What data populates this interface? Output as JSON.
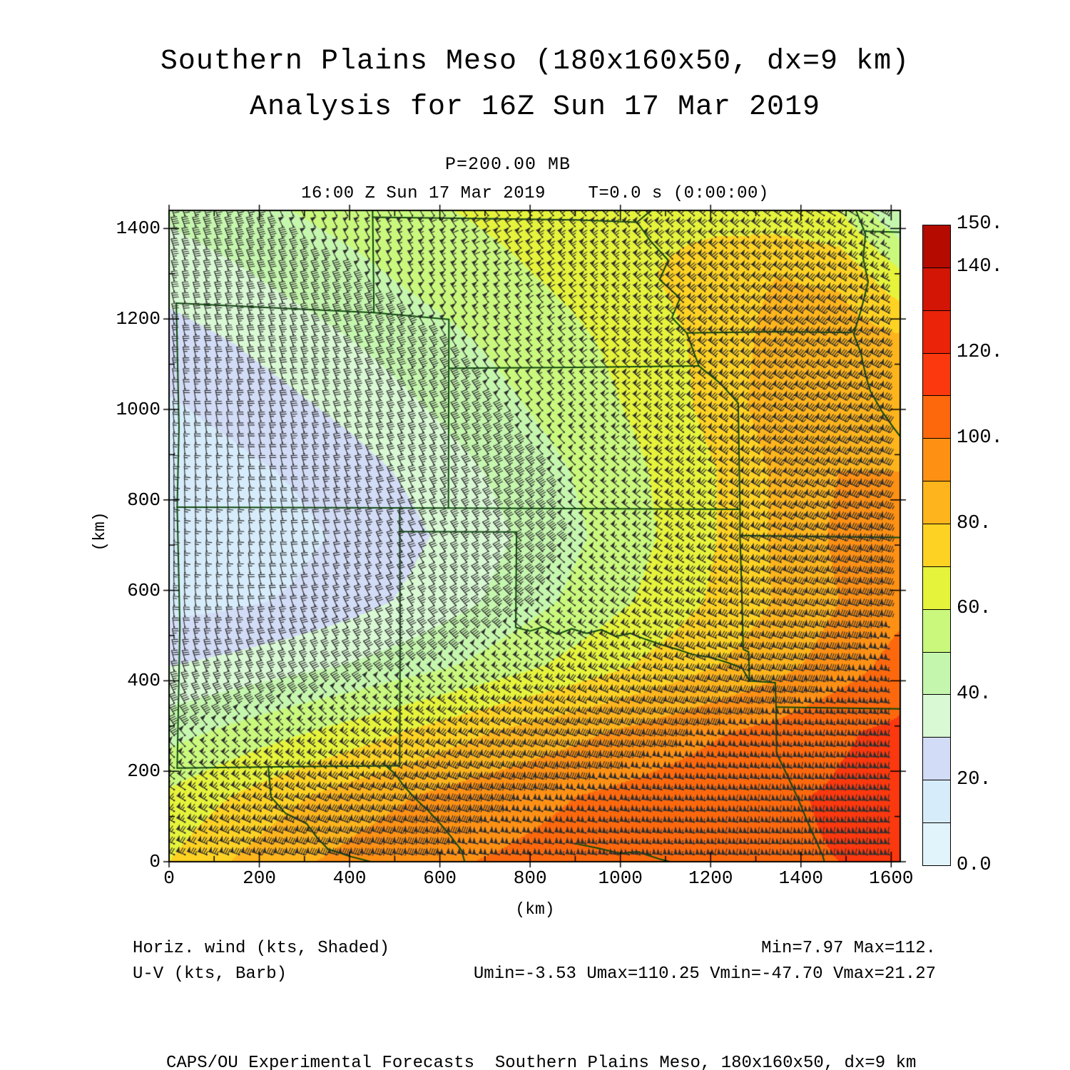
{
  "header": {
    "title_line1": "Southern Plains Meso (180x160x50, dx=9 km)",
    "title_line2": "Analysis for 16Z Sun 17 Mar 2019",
    "pressure_line": "P=200.00 MB",
    "time_line": "16:00 Z Sun 17 Mar 2019    T=0.0 s (0:00:00)"
  },
  "axes": {
    "x_label": "(km)",
    "y_label": "(km)",
    "x_ticks": [
      0,
      200,
      400,
      600,
      800,
      1000,
      1200,
      1400,
      1600
    ],
    "y_ticks": [
      0,
      200,
      400,
      600,
      800,
      1000,
      1200,
      1400
    ],
    "minor_step_km": 100,
    "x_range_km": [
      0,
      1620
    ],
    "y_range_km": [
      0,
      1440
    ]
  },
  "colorbar": {
    "min": 0,
    "max": 150,
    "step": 10,
    "colors_low_to_high": [
      "#e2f4fb",
      "#d7ecfa",
      "#d3dcf6",
      "#d9f8d4",
      "#c5f6ad",
      "#c9f87c",
      "#e6f33b",
      "#fed223",
      "#feb41c",
      "#fe9014",
      "#fd680d",
      "#fb380e",
      "#ea2309",
      "#d31505",
      "#b40a00"
    ],
    "labels": [
      {
        "text": "150.",
        "value": 150
      },
      {
        "text": "140.",
        "value": 140
      },
      {
        "text": "120.",
        "value": 120
      },
      {
        "text": "100.",
        "value": 100
      },
      {
        "text": "80.",
        "value": 80
      },
      {
        "text": "60.",
        "value": 60
      },
      {
        "text": "40.",
        "value": 40
      },
      {
        "text": "20.",
        "value": 20
      },
      {
        "text": "0.0",
        "value": 0
      }
    ]
  },
  "annotations": {
    "field_label": "Horiz. wind (kts, Shaded)",
    "vector_label": "U-V (kts, Barb)",
    "minmax_label": "Min=7.97 Max=112.",
    "uv_minmax_label": "Umin=-3.53 Umax=110.25 Vmin=-47.70 Vmax=21.27"
  },
  "footer": "CAPS/OU Experimental Forecasts  Southern Plains Meso, 180x160x50, dx=9 km",
  "chart_data": {
    "type": "heatmap",
    "field_name": "horizontal wind speed (kts, shaded) with U-V wind barbs (kts)",
    "stats": {
      "min": 7.97,
      "max": 112.0,
      "umin": -3.53,
      "umax": 110.25,
      "vmin": -47.7,
      "vmax": 21.27
    },
    "grid_x_km": [
      0,
      135,
      270,
      405,
      540,
      675,
      810,
      945,
      1080,
      1215,
      1350,
      1485,
      1620
    ],
    "grid_y_km": [
      1440,
      1296,
      1152,
      1008,
      864,
      720,
      576,
      432,
      288,
      144,
      0
    ],
    "speed_kts": [
      [
        42,
        46,
        50,
        54,
        58,
        61,
        64,
        66,
        67,
        66,
        64,
        60,
        40
      ],
      [
        34,
        38,
        43,
        47,
        52,
        56,
        60,
        64,
        70,
        76,
        80,
        78,
        62
      ],
      [
        26,
        30,
        35,
        40,
        45,
        50,
        55,
        60,
        66,
        74,
        84,
        86,
        82
      ],
      [
        19,
        23,
        28,
        33,
        39,
        45,
        51,
        57,
        64,
        74,
        86,
        90,
        86
      ],
      [
        14,
        17,
        21,
        26,
        32,
        39,
        46,
        53,
        61,
        70,
        82,
        90,
        90
      ],
      [
        12,
        14,
        17,
        22,
        28,
        35,
        43,
        51,
        60,
        70,
        82,
        92,
        95
      ],
      [
        16,
        18,
        21,
        26,
        32,
        39,
        47,
        55,
        63,
        72,
        81,
        90,
        97
      ],
      [
        30,
        33,
        37,
        41,
        46,
        52,
        59,
        66,
        73,
        80,
        87,
        95,
        104
      ],
      [
        46,
        52,
        58,
        64,
        71,
        78,
        84,
        89,
        94,
        99,
        103,
        109,
        112
      ],
      [
        62,
        70,
        78,
        85,
        90,
        95,
        98,
        101,
        104,
        107,
        109,
        111,
        112
      ],
      [
        70,
        80,
        88,
        93,
        97,
        100,
        102,
        104,
        106,
        108,
        109,
        110,
        110
      ]
    ],
    "direction_from_deg": [
      [
        340,
        338,
        335,
        332,
        328,
        324,
        320,
        316,
        312,
        308,
        304,
        300,
        298
      ],
      [
        344,
        341,
        338,
        334,
        330,
        326,
        321,
        317,
        312,
        308,
        304,
        300,
        297
      ],
      [
        348,
        345,
        341,
        336,
        331,
        326,
        321,
        316,
        311,
        306,
        302,
        298,
        295
      ],
      [
        352,
        349,
        344,
        339,
        333,
        327,
        321,
        315,
        309,
        304,
        300,
        296,
        292
      ],
      [
        357,
        353,
        348,
        341,
        334,
        327,
        320,
        313,
        307,
        302,
        297,
        293,
        289
      ],
      [
        360,
        356,
        349,
        341,
        333,
        325,
        317,
        310,
        304,
        298,
        293,
        289,
        285
      ],
      [
        357,
        351,
        343,
        335,
        327,
        319,
        312,
        305,
        299,
        294,
        289,
        285,
        281
      ],
      [
        344,
        337,
        330,
        323,
        315,
        308,
        302,
        296,
        291,
        287,
        283,
        279,
        277
      ],
      [
        322,
        317,
        311,
        305,
        300,
        295,
        290,
        286,
        283,
        280,
        277,
        275,
        273
      ],
      [
        302,
        298,
        294,
        290,
        287,
        284,
        281,
        279,
        277,
        275,
        273,
        272,
        271
      ],
      [
        290,
        287,
        284,
        282,
        280,
        278,
        276,
        275,
        274,
        273,
        272,
        271,
        270
      ]
    ],
    "barb_spacing_km": 24,
    "barb_color": "#2e2e2e",
    "border_color": "#0b4a0b",
    "borders_km": [
      {
        "name": "state-border-west-109w",
        "pts": [
          [
            16,
            1235
          ],
          [
            22,
            960
          ],
          [
            18,
            784
          ],
          [
            24,
            520
          ],
          [
            18,
            207
          ]
        ]
      },
      {
        "name": "colorado-north-41n",
        "pts": [
          [
            16,
            1235
          ],
          [
            454,
            1214
          ],
          [
            620,
            1199
          ]
        ]
      },
      {
        "name": "wyoming-nebraska-104w",
        "pts": [
          [
            454,
            1214
          ],
          [
            451,
            1440
          ]
        ]
      },
      {
        "name": "nebraska-southdakota-43n",
        "pts": [
          [
            451,
            1425
          ],
          [
            700,
            1422
          ],
          [
            900,
            1419
          ],
          [
            1037,
            1414
          ]
        ]
      },
      {
        "name": "missouri-river",
        "pts": [
          [
            1068,
            1440
          ],
          [
            1037,
            1414
          ],
          [
            1067,
            1372
          ],
          [
            1106,
            1330
          ],
          [
            1087,
            1287
          ],
          [
            1132,
            1246
          ],
          [
            1114,
            1203
          ],
          [
            1147,
            1169
          ],
          [
            1174,
            1096
          ],
          [
            1222,
            1057
          ],
          [
            1261,
            1014
          ]
        ]
      },
      {
        "name": "colorado-east-102w",
        "pts": [
          [
            620,
            1199
          ],
          [
            619,
            782
          ]
        ]
      },
      {
        "name": "nebraska-kansas-40n",
        "pts": [
          [
            620,
            1091
          ],
          [
            900,
            1093
          ],
          [
            1174,
            1096
          ]
        ]
      },
      {
        "name": "line-37n",
        "pts": [
          [
            18,
            784
          ],
          [
            620,
            782
          ],
          [
            1265,
            779
          ]
        ]
      },
      {
        "name": "iowa-missouri-40-58n",
        "pts": [
          [
            1147,
            1169
          ],
          [
            1350,
            1172
          ],
          [
            1511,
            1170
          ],
          [
            1522,
            1183
          ]
        ]
      },
      {
        "name": "mississippi-river",
        "pts": [
          [
            1522,
            1440
          ],
          [
            1543,
            1388
          ],
          [
            1538,
            1334
          ],
          [
            1549,
            1282
          ],
          [
            1533,
            1219
          ],
          [
            1517,
            1167
          ],
          [
            1533,
            1124
          ],
          [
            1543,
            1077
          ],
          [
            1554,
            1040
          ],
          [
            1580,
            995
          ],
          [
            1605,
            960
          ],
          [
            1620,
            940
          ]
        ]
      },
      {
        "name": "wisconsin-illinois-42-5n",
        "pts": [
          [
            1543,
            1394
          ],
          [
            1620,
            1392
          ]
        ]
      },
      {
        "name": "kansas-missouri-94-6w",
        "pts": [
          [
            1261,
            1014
          ],
          [
            1265,
            779
          ]
        ]
      },
      {
        "name": "missouri-arkansas-36-5n",
        "pts": [
          [
            1265,
            721
          ],
          [
            1450,
            719
          ],
          [
            1620,
            717
          ]
        ]
      },
      {
        "name": "oklahoma-arkansas-94-5w",
        "pts": [
          [
            1265,
            779
          ],
          [
            1265,
            721
          ],
          [
            1270,
            560
          ],
          [
            1272,
            470
          ],
          [
            1284,
            464
          ],
          [
            1286,
            400
          ]
        ]
      },
      {
        "name": "newmexico-texas-103w",
        "pts": [
          [
            511,
            783
          ],
          [
            512,
            500
          ],
          [
            511,
            212
          ]
        ]
      },
      {
        "name": "oklahoma-panhandle-south-36-5n",
        "pts": [
          [
            511,
            730
          ],
          [
            770,
            729
          ]
        ]
      },
      {
        "name": "texas-oklahoma-100w",
        "pts": [
          [
            770,
            729
          ],
          [
            768,
            518
          ]
        ]
      },
      {
        "name": "red-river",
        "pts": [
          [
            768,
            518
          ],
          [
            800,
            510
          ],
          [
            828,
            519
          ],
          [
            860,
            503
          ],
          [
            892,
            515
          ],
          [
            925,
            505
          ],
          [
            958,
            513
          ],
          [
            990,
            498
          ],
          [
            1022,
            505
          ],
          [
            1055,
            492
          ],
          [
            1090,
            480
          ],
          [
            1125,
            470
          ],
          [
            1160,
            458
          ],
          [
            1200,
            452
          ],
          [
            1238,
            440
          ],
          [
            1270,
            428
          ],
          [
            1286,
            400
          ],
          [
            1343,
            396
          ]
        ]
      },
      {
        "name": "texas-arkansas-94w",
        "pts": [
          [
            1343,
            396
          ],
          [
            1345,
            342
          ]
        ]
      },
      {
        "name": "arkansas-louisiana-33n",
        "pts": [
          [
            1345,
            342
          ],
          [
            1480,
            340
          ],
          [
            1620,
            338
          ]
        ]
      },
      {
        "name": "texas-louisiana-sabine",
        "pts": [
          [
            1345,
            342
          ],
          [
            1346,
            240
          ],
          [
            1370,
            190
          ],
          [
            1392,
            143
          ],
          [
            1409,
            102
          ],
          [
            1428,
            58
          ],
          [
            1448,
            14
          ],
          [
            1452,
            0
          ]
        ]
      },
      {
        "name": "mexico-border-32n",
        "pts": [
          [
            18,
            207
          ],
          [
            270,
            210
          ],
          [
            511,
            212
          ]
        ]
      },
      {
        "name": "rio-grande",
        "pts": [
          [
            220,
            208
          ],
          [
            226,
            143
          ],
          [
            258,
            107
          ],
          [
            305,
            84
          ],
          [
            329,
            52
          ],
          [
            352,
            28
          ],
          [
            400,
            12
          ],
          [
            447,
            0
          ]
        ]
      },
      {
        "name": "pecos-river",
        "pts": [
          [
            480,
            212
          ],
          [
            500,
            195
          ],
          [
            520,
            168
          ],
          [
            545,
            140
          ],
          [
            575,
            112
          ],
          [
            600,
            85
          ],
          [
            625,
            55
          ],
          [
            648,
            25
          ],
          [
            655,
            0
          ]
        ]
      },
      {
        "name": "river-south",
        "pts": [
          [
            900,
            40
          ],
          [
            950,
            30
          ],
          [
            1000,
            18
          ],
          [
            1037,
            22
          ],
          [
            1090,
            5
          ],
          [
            1110,
            0
          ]
        ]
      }
    ]
  }
}
